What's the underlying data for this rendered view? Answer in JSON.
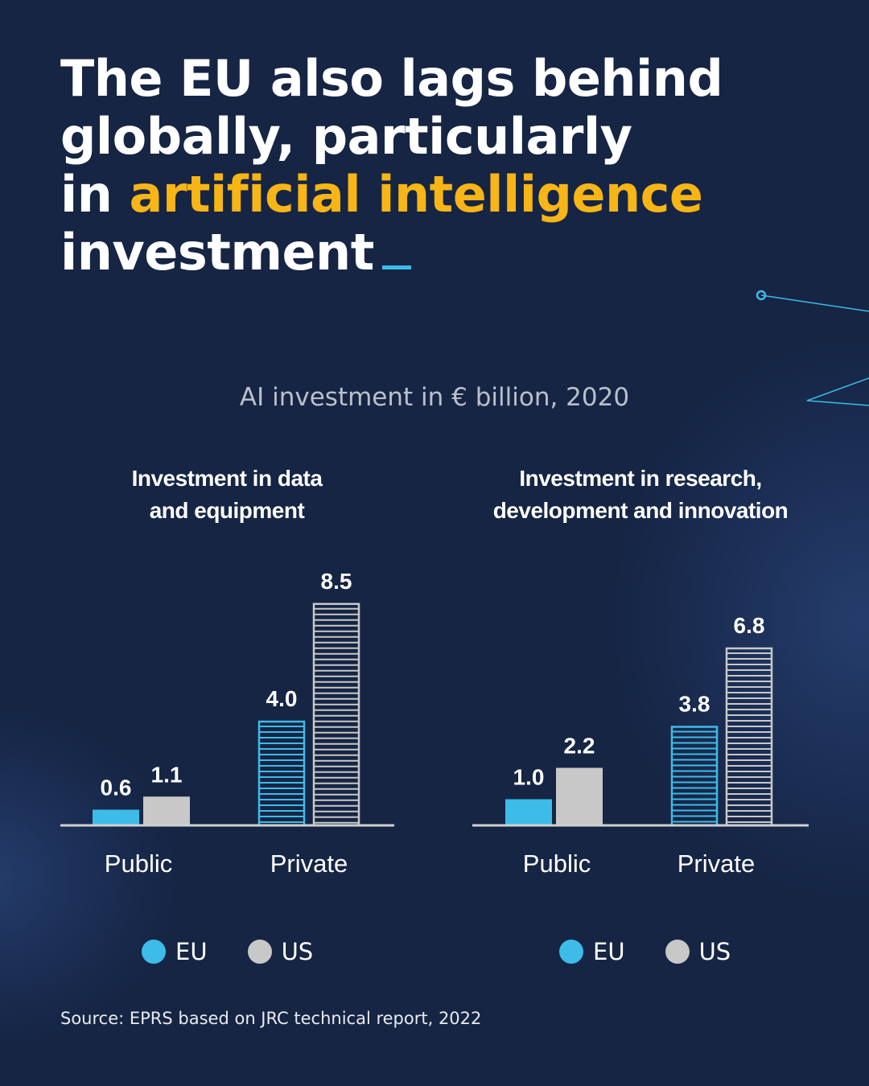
{
  "title": {
    "line1": "The EU also lags behind",
    "line2": "globally, particularly",
    "line3_prefix": "in ",
    "line3_highlight": "artificial intelligence",
    "line4": "investment"
  },
  "subtitle": "AI investment in € billion, 2020",
  "colors": {
    "background": "#162544",
    "eu": "#3dbbe9",
    "us": "#c8c8c8",
    "highlight": "#f7b516"
  },
  "chart_data": [
    {
      "type": "bar",
      "title": "Investment in data and equipment",
      "categories": [
        "Public",
        "Private"
      ],
      "series": [
        {
          "name": "EU",
          "values": [
            0.6,
            4.0
          ]
        },
        {
          "name": "US",
          "values": [
            1.1,
            8.5
          ]
        }
      ],
      "ylim": [
        0,
        8.5
      ],
      "grid": false,
      "legend": "bottom"
    },
    {
      "type": "bar",
      "title": "Investment in research, development and innovation",
      "categories": [
        "Public",
        "Private"
      ],
      "series": [
        {
          "name": "EU",
          "values": [
            1.0,
            3.8
          ]
        },
        {
          "name": "US",
          "values": [
            2.2,
            6.8
          ]
        }
      ],
      "ylim": [
        0,
        8.5
      ],
      "grid": false,
      "legend": "bottom"
    }
  ],
  "chart_titles": [
    {
      "l1": "Investment in data",
      "l2": "and equipment"
    },
    {
      "l1": "Investment in research,",
      "l2": "development and innovation"
    }
  ],
  "legend": {
    "eu": "EU",
    "us": "US"
  },
  "source": "Source: EPRS based on JRC technical report, 2022"
}
